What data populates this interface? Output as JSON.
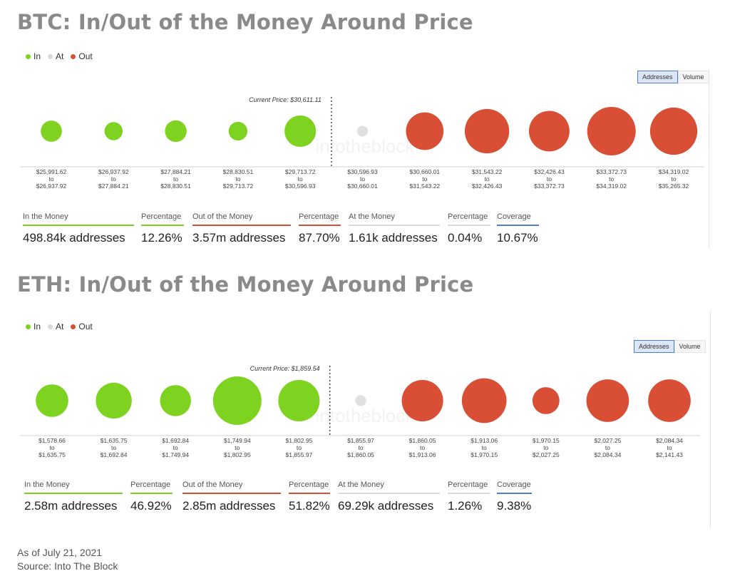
{
  "colors": {
    "in": "#7ed321",
    "at": "#e0e0e0",
    "out": "#d94f36",
    "coverage": "#4a7fd0",
    "at_bar": "#d9d9d9"
  },
  "legend": {
    "in": "In",
    "at": "At",
    "out": "Out"
  },
  "toggle": {
    "addresses": "Addresses",
    "volume": "Volume"
  },
  "watermark": "intotheblock",
  "panels": [
    {
      "id": "btc",
      "title": "BTC: In/Out of the Money Around Price",
      "current_price_label": "Current Price: $30,611.11",
      "stats": [
        {
          "label": "In the Money",
          "value": "498.84k addresses",
          "bar": "in"
        },
        {
          "label": "Percentage",
          "value": "12.26%",
          "bar": "in"
        },
        {
          "label": "Out of the Money",
          "value": "3.57m addresses",
          "bar": "out"
        },
        {
          "label": "Percentage",
          "value": "87.70%",
          "bar": "out"
        },
        {
          "label": "At the Money",
          "value": "1.61k addresses",
          "bar": "at"
        },
        {
          "label": "Percentage",
          "value": "0.04%",
          "bar": "at"
        },
        {
          "label": "Coverage",
          "value": "10.67%",
          "bar": "coverage"
        }
      ]
    },
    {
      "id": "eth",
      "title": "ETH: In/Out of the Money Around Price",
      "current_price_label": "Current Price: $1,859.54",
      "stats": [
        {
          "label": "In the Money",
          "value": "2.58m addresses",
          "bar": "in"
        },
        {
          "label": "Percentage",
          "value": "46.92%",
          "bar": "in"
        },
        {
          "label": "Out of the Money",
          "value": "2.85m addresses",
          "bar": "out"
        },
        {
          "label": "Percentage",
          "value": "51.82%",
          "bar": "out"
        },
        {
          "label": "At the Money",
          "value": "69.29k addresses",
          "bar": "at"
        },
        {
          "label": "Percentage",
          "value": "1.26%",
          "bar": "at"
        },
        {
          "label": "Coverage",
          "value": "9.38%",
          "bar": "coverage"
        }
      ]
    }
  ],
  "chart_data": [
    {
      "type": "bubble",
      "title": "BTC: In/Out of the Money Around Price",
      "current_price": 30611.11,
      "legend": [
        "In",
        "At",
        "Out"
      ],
      "buckets": [
        {
          "from": "$25,991.62",
          "to": "$26,937.92",
          "status": "in",
          "size": 0.19
        },
        {
          "from": "$26,937.92",
          "to": "$27,884.21",
          "status": "in",
          "size": 0.14
        },
        {
          "from": "$27,884.21",
          "to": "$28,830.51",
          "status": "in",
          "size": 0.2
        },
        {
          "from": "$28,830.51",
          "to": "$29,713.72",
          "status": "in",
          "size": 0.15
        },
        {
          "from": "$29,713.72",
          "to": "$30,596.93",
          "status": "in",
          "size": 0.42
        },
        {
          "from": "$30,596.93",
          "to": "$30,660.01",
          "status": "at",
          "size": 0.05
        },
        {
          "from": "$30,660.01",
          "to": "$31,543.22",
          "status": "out",
          "size": 0.6
        },
        {
          "from": "$31,543.22",
          "to": "$32,426.43",
          "status": "out",
          "size": 0.84
        },
        {
          "from": "$32,426.43",
          "to": "$33,372.73",
          "status": "out",
          "size": 0.7
        },
        {
          "from": "$33,372.73",
          "to": "$34,319.02",
          "status": "out",
          "size": 1.0
        },
        {
          "from": "$34,319.02",
          "to": "$35,265.32",
          "status": "out",
          "size": 0.95
        }
      ],
      "to_word": "to"
    },
    {
      "type": "bubble",
      "title": "ETH: In/Out of the Money Around Price",
      "current_price": 1859.54,
      "legend": [
        "In",
        "At",
        "Out"
      ],
      "buckets": [
        {
          "from": "$1,578.66",
          "to": "$1,635.75",
          "status": "in",
          "size": 0.45
        },
        {
          "from": "$1,635.75",
          "to": "$1,692.84",
          "status": "in",
          "size": 0.55
        },
        {
          "from": "$1,692.84",
          "to": "$1,749.94",
          "status": "in",
          "size": 0.41
        },
        {
          "from": "$1,749.94",
          "to": "$1,802.95",
          "status": "in",
          "size": 1.0
        },
        {
          "from": "$1,802.95",
          "to": "$1,855.97",
          "status": "in",
          "size": 0.73
        },
        {
          "from": "$1,855.97",
          "to": "$1,860.05",
          "status": "at",
          "size": 0.05
        },
        {
          "from": "$1,860.05",
          "to": "$1,913.06",
          "status": "out",
          "size": 0.73
        },
        {
          "from": "$1,913.06",
          "to": "$1,970.15",
          "status": "out",
          "size": 0.85
        },
        {
          "from": "$1,970.15",
          "to": "$2,027.25",
          "status": "out",
          "size": 0.31
        },
        {
          "from": "$2,027.25",
          "to": "$2,084.34",
          "status": "out",
          "size": 0.77
        },
        {
          "from": "$2,084.34",
          "to": "$2,141.43",
          "status": "out",
          "size": 0.77
        }
      ],
      "to_word": "to"
    }
  ],
  "footer": {
    "date": "As of July 21, 2021",
    "source": "Source: Into The Block"
  }
}
